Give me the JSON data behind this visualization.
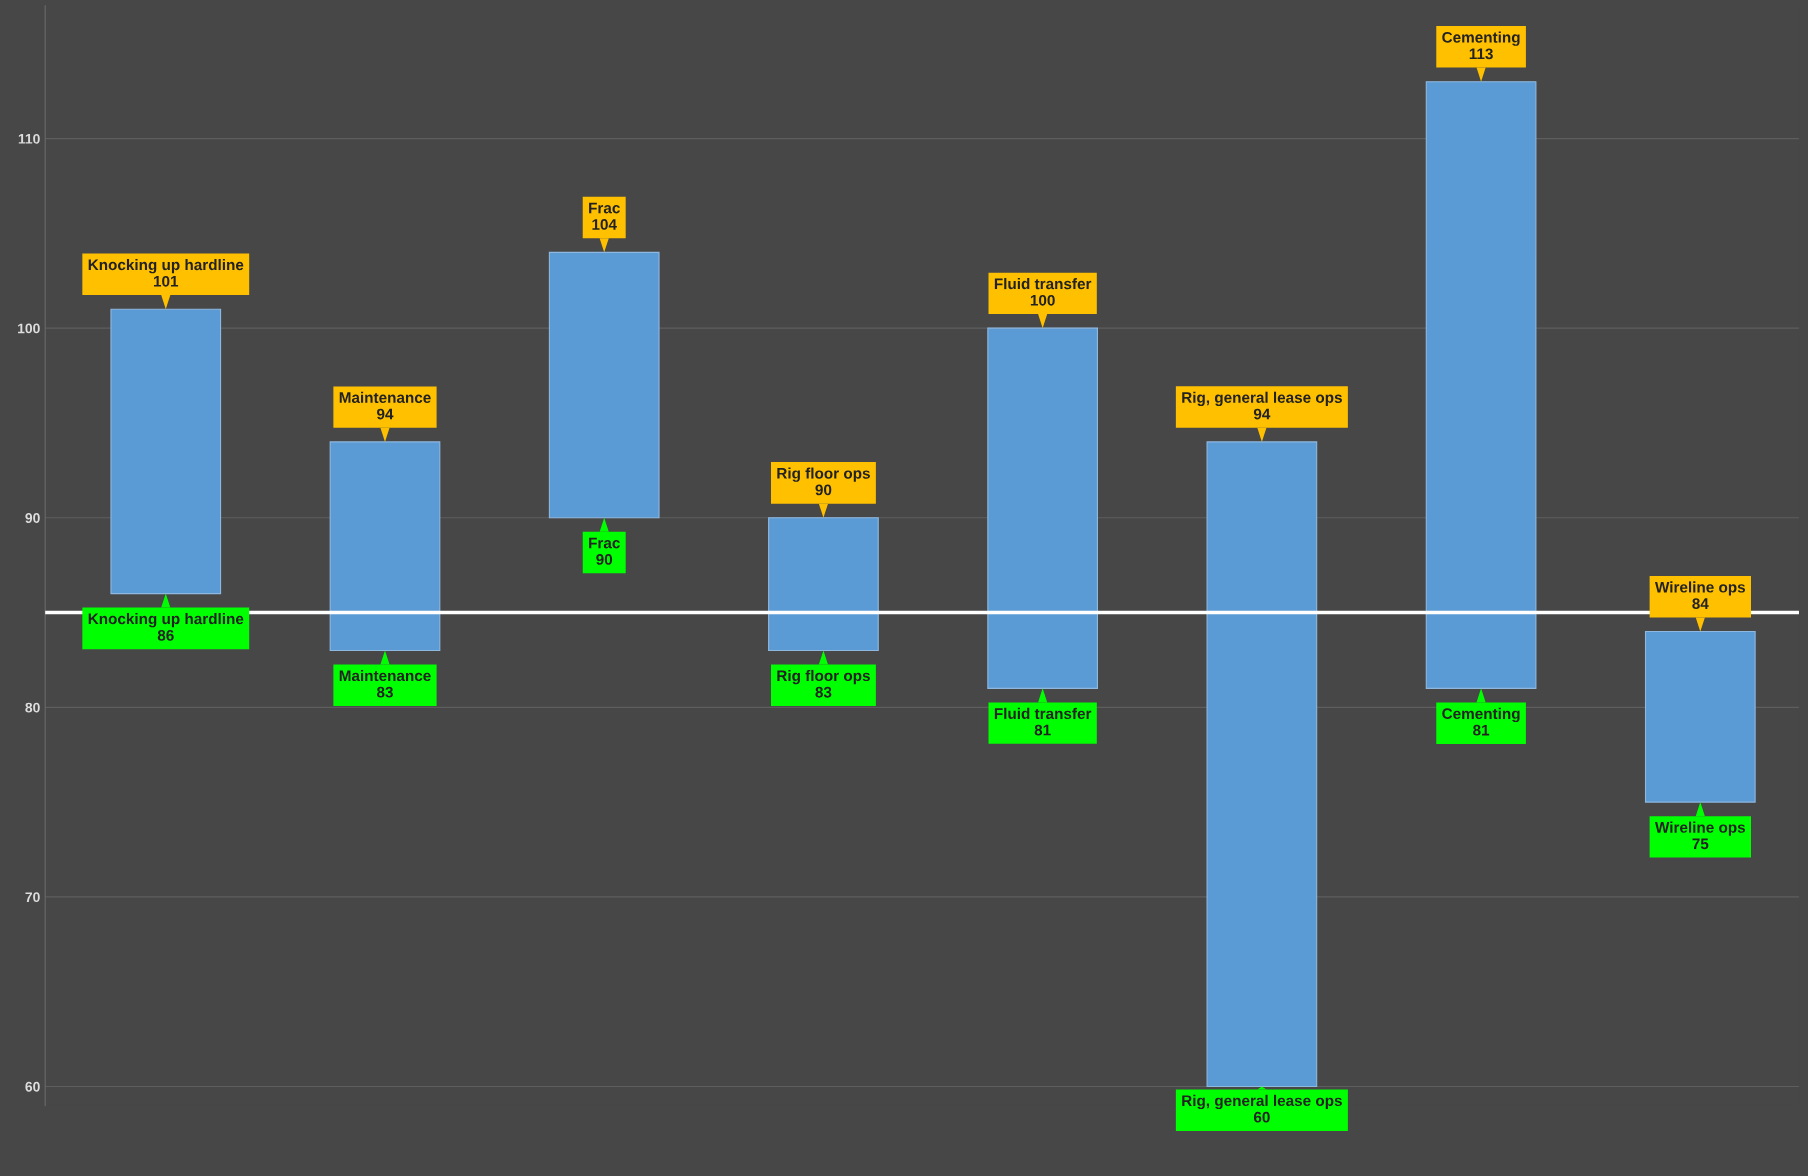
{
  "chart_data": {
    "type": "bar",
    "categories": [
      null,
      null,
      null,
      null,
      null,
      null,
      null,
      null
    ],
    "base": [
      86,
      83,
      90,
      83,
      81,
      60,
      81,
      75
    ],
    "values": [
      15,
      11,
      14,
      7,
      19,
      34,
      32,
      9
    ],
    "color": "#5b9bd5",
    "ylim": [
      59,
      117
    ],
    "yticks": [
      60,
      70,
      80,
      90,
      100,
      110
    ],
    "grid": "y",
    "tick_labels": "y",
    "ref_lines": [
      {
        "axis": "y",
        "value": 85,
        "color": "#ffffff"
      }
    ],
    "annotations": [
      {
        "text": "Knocking up hardline\n101",
        "y": 101
      },
      {
        "text": "Knocking up hardline\n86",
        "y": 86
      },
      {
        "text": "Maintenance\n94",
        "y": 94
      },
      {
        "text": "Maintenance\n83",
        "y": 83
      },
      {
        "text": "Frac\n104",
        "y": 104
      },
      {
        "text": "Frac\n90",
        "y": 90
      },
      {
        "text": "Rig floor ops\n90",
        "y": 90
      },
      {
        "text": "Rig floor ops\n83",
        "y": 83
      },
      {
        "text": "Fluid transfer\n100",
        "y": 100
      },
      {
        "text": "Fluid transfer\n81",
        "y": 81
      },
      {
        "text": "Rig, general lease ops\n94",
        "y": 94
      },
      {
        "text": "Rig, general lease ops\n60",
        "y": 60
      },
      {
        "text": "Cementing\n113",
        "y": 113
      },
      {
        "text": "Cementing\n81",
        "y": 81
      },
      {
        "text": "Wireline ops\n84",
        "y": 84
      },
      {
        "text": "Wireline ops\n75",
        "y": 75
      }
    ]
  }
}
